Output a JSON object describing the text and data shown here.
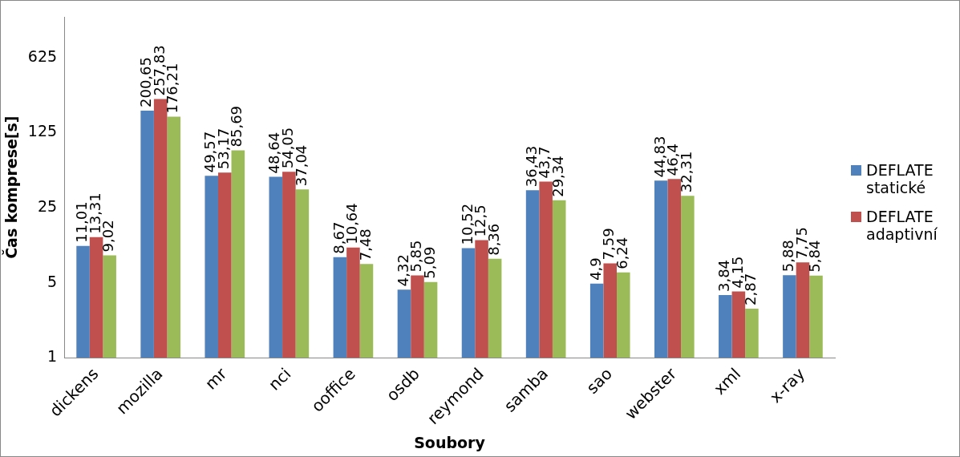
{
  "chart_data": {
    "type": "bar",
    "xlabel": "Soubory",
    "ylabel": "Čas komprese[s]",
    "categories": [
      "dickens",
      "mozilla",
      "mr",
      "nci",
      "ooffice",
      "osdb",
      "reymond",
      "samba",
      "sao",
      "webster",
      "xml",
      "x-ray"
    ],
    "series": [
      {
        "name": "DEFLATE statické",
        "color": "#4f81bd",
        "values": [
          11.01,
          200.65,
          49.57,
          48.64,
          8.67,
          4.32,
          10.52,
          36.43,
          4.9,
          44.83,
          3.84,
          5.88
        ],
        "value_labels": [
          "11,01",
          "200,65",
          "49,57",
          "48,64",
          "8,67",
          "4,32",
          "10,52",
          "36,43",
          "4,9",
          "44,83",
          "3,84",
          "5,88"
        ]
      },
      {
        "name": "DEFLATE adaptivní",
        "color": "#c0504d",
        "values": [
          13.31,
          257.83,
          53.17,
          54.05,
          10.64,
          5.85,
          12.5,
          43.7,
          7.59,
          46.4,
          4.15,
          7.75
        ],
        "value_labels": [
          "13,31",
          "257,83",
          "53,17",
          "54,05",
          "10,64",
          "5,85",
          "12,5",
          "43,7",
          "7,59",
          "46,4",
          "4,15",
          "7,75"
        ]
      },
      {
        "color": "#9bbb59",
        "values": [
          9.02,
          176.21,
          85.69,
          37.04,
          7.48,
          5.09,
          8.36,
          29.34,
          6.24,
          32.31,
          2.87,
          5.84
        ],
        "value_labels": [
          "9,02",
          "176,21",
          "85,69",
          "37,04",
          "7,48",
          "5,09",
          "8,36",
          "29,34",
          "6,24",
          "32,31",
          "2,87",
          "5,84"
        ]
      }
    ],
    "log": true,
    "ylim": [
      1,
      1500
    ],
    "yticks": [
      1,
      5,
      25,
      125,
      625
    ],
    "grid": false,
    "legend": "right"
  }
}
